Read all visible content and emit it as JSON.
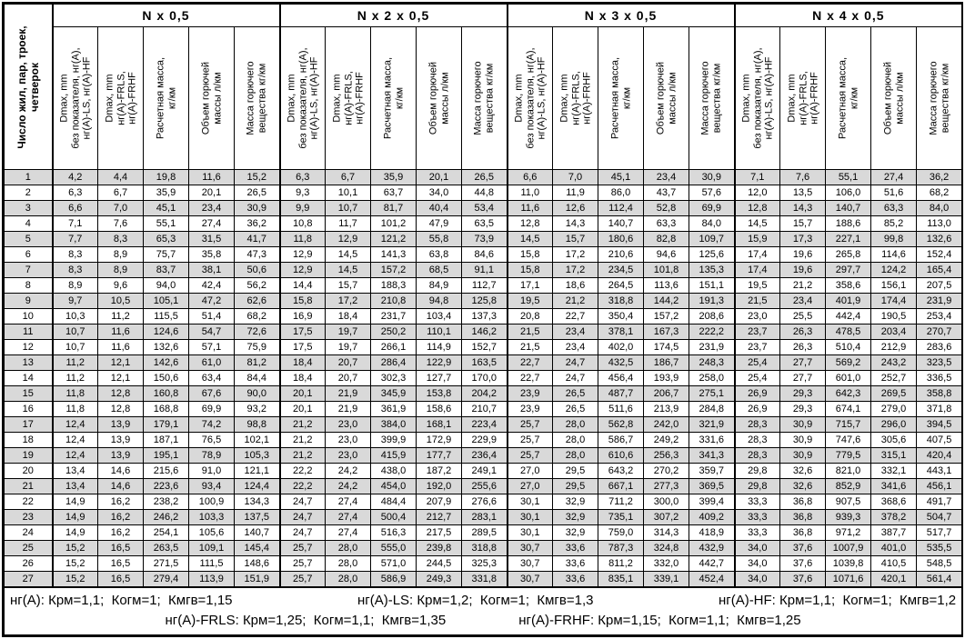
{
  "table": {
    "corner_label": "Число жил, пар, троек,\nчетверок",
    "groups": [
      {
        "label": "N x 0,5"
      },
      {
        "label": "N x 2 x 0,5"
      },
      {
        "label": "N x 3 x 0,5"
      },
      {
        "label": "N x 4 x 0,5"
      }
    ],
    "sub_headers": [
      "Dmax, mm\nбез показателя, нг(А),\nнг(А)-LS, нг(А)-HF",
      "Dmax, mm\nнг(А)-FRLS,\nнг(А)-FRHF",
      "Расчетная масса,\nкг/км",
      "Объем горючей\nмассы л/км",
      "Масса горючего\nвещества кг/км"
    ],
    "rows": [
      {
        "n": "1",
        "values": [
          "4,2",
          "4,4",
          "19,8",
          "11,6",
          "15,2",
          "6,3",
          "6,7",
          "35,9",
          "20,1",
          "26,5",
          "6,6",
          "7,0",
          "45,1",
          "23,4",
          "30,9",
          "7,1",
          "7,6",
          "55,1",
          "27,4",
          "36,2"
        ]
      },
      {
        "n": "2",
        "values": [
          "6,3",
          "6,7",
          "35,9",
          "20,1",
          "26,5",
          "9,3",
          "10,1",
          "63,7",
          "34,0",
          "44,8",
          "11,0",
          "11,9",
          "86,0",
          "43,7",
          "57,6",
          "12,0",
          "13,5",
          "106,0",
          "51,6",
          "68,2"
        ]
      },
      {
        "n": "3",
        "values": [
          "6,6",
          "7,0",
          "45,1",
          "23,4",
          "30,9",
          "9,9",
          "10,7",
          "81,7",
          "40,4",
          "53,4",
          "11,6",
          "12,6",
          "112,4",
          "52,8",
          "69,9",
          "12,8",
          "14,3",
          "140,7",
          "63,3",
          "84,0"
        ]
      },
      {
        "n": "4",
        "values": [
          "7,1",
          "7,6",
          "55,1",
          "27,4",
          "36,2",
          "10,8",
          "11,7",
          "101,2",
          "47,9",
          "63,5",
          "12,8",
          "14,3",
          "140,7",
          "63,3",
          "84,0",
          "14,5",
          "15,7",
          "188,6",
          "85,2",
          "113,0"
        ]
      },
      {
        "n": "5",
        "values": [
          "7,7",
          "8,3",
          "65,3",
          "31,5",
          "41,7",
          "11,8",
          "12,9",
          "121,2",
          "55,8",
          "73,9",
          "14,5",
          "15,7",
          "180,6",
          "82,8",
          "109,7",
          "15,9",
          "17,3",
          "227,1",
          "99,8",
          "132,6"
        ]
      },
      {
        "n": "6",
        "values": [
          "8,3",
          "8,9",
          "75,7",
          "35,8",
          "47,3",
          "12,9",
          "14,5",
          "141,3",
          "63,8",
          "84,6",
          "15,8",
          "17,2",
          "210,6",
          "94,6",
          "125,6",
          "17,4",
          "19,6",
          "265,8",
          "114,6",
          "152,4"
        ]
      },
      {
        "n": "7",
        "values": [
          "8,3",
          "8,9",
          "83,7",
          "38,1",
          "50,6",
          "12,9",
          "14,5",
          "157,2",
          "68,5",
          "91,1",
          "15,8",
          "17,2",
          "234,5",
          "101,8",
          "135,3",
          "17,4",
          "19,6",
          "297,7",
          "124,2",
          "165,4"
        ]
      },
      {
        "n": "8",
        "values": [
          "8,9",
          "9,6",
          "94,0",
          "42,4",
          "56,2",
          "14,4",
          "15,7",
          "188,3",
          "84,9",
          "112,7",
          "17,1",
          "18,6",
          "264,5",
          "113,6",
          "151,1",
          "19,5",
          "21,2",
          "358,6",
          "156,1",
          "207,5"
        ]
      },
      {
        "n": "9",
        "values": [
          "9,7",
          "10,5",
          "105,1",
          "47,2",
          "62,6",
          "15,8",
          "17,2",
          "210,8",
          "94,8",
          "125,8",
          "19,5",
          "21,2",
          "318,8",
          "144,2",
          "191,3",
          "21,5",
          "23,4",
          "401,9",
          "174,4",
          "231,9"
        ]
      },
      {
        "n": "10",
        "values": [
          "10,3",
          "11,2",
          "115,5",
          "51,4",
          "68,2",
          "16,9",
          "18,4",
          "231,7",
          "103,4",
          "137,3",
          "20,8",
          "22,7",
          "350,4",
          "157,2",
          "208,6",
          "23,0",
          "25,5",
          "442,4",
          "190,5",
          "253,4"
        ]
      },
      {
        "n": "11",
        "values": [
          "10,7",
          "11,6",
          "124,6",
          "54,7",
          "72,6",
          "17,5",
          "19,7",
          "250,2",
          "110,1",
          "146,2",
          "21,5",
          "23,4",
          "378,1",
          "167,3",
          "222,2",
          "23,7",
          "26,3",
          "478,5",
          "203,4",
          "270,7"
        ]
      },
      {
        "n": "12",
        "values": [
          "10,7",
          "11,6",
          "132,6",
          "57,1",
          "75,9",
          "17,5",
          "19,7",
          "266,1",
          "114,9",
          "152,7",
          "21,5",
          "23,4",
          "402,0",
          "174,5",
          "231,9",
          "23,7",
          "26,3",
          "510,4",
          "212,9",
          "283,6"
        ]
      },
      {
        "n": "13",
        "values": [
          "11,2",
          "12,1",
          "142,6",
          "61,0",
          "81,2",
          "18,4",
          "20,7",
          "286,4",
          "122,9",
          "163,5",
          "22,7",
          "24,7",
          "432,5",
          "186,7",
          "248,3",
          "25,4",
          "27,7",
          "569,2",
          "243,2",
          "323,5"
        ]
      },
      {
        "n": "14",
        "values": [
          "11,2",
          "12,1",
          "150,6",
          "63,4",
          "84,4",
          "18,4",
          "20,7",
          "302,3",
          "127,7",
          "170,0",
          "22,7",
          "24,7",
          "456,4",
          "193,9",
          "258,0",
          "25,4",
          "27,7",
          "601,0",
          "252,7",
          "336,5"
        ]
      },
      {
        "n": "15",
        "values": [
          "11,8",
          "12,8",
          "160,8",
          "67,6",
          "90,0",
          "20,1",
          "21,9",
          "345,9",
          "153,8",
          "204,2",
          "23,9",
          "26,5",
          "487,7",
          "206,7",
          "275,1",
          "26,9",
          "29,3",
          "642,3",
          "269,5",
          "358,8"
        ]
      },
      {
        "n": "16",
        "values": [
          "11,8",
          "12,8",
          "168,8",
          "69,9",
          "93,2",
          "20,1",
          "21,9",
          "361,9",
          "158,6",
          "210,7",
          "23,9",
          "26,5",
          "511,6",
          "213,9",
          "284,8",
          "26,9",
          "29,3",
          "674,1",
          "279,0",
          "371,8"
        ]
      },
      {
        "n": "17",
        "values": [
          "12,4",
          "13,9",
          "179,1",
          "74,2",
          "98,8",
          "21,2",
          "23,0",
          "384,0",
          "168,1",
          "223,4",
          "25,7",
          "28,0",
          "562,8",
          "242,0",
          "321,9",
          "28,3",
          "30,9",
          "715,7",
          "296,0",
          "394,5"
        ]
      },
      {
        "n": "18",
        "values": [
          "12,4",
          "13,9",
          "187,1",
          "76,5",
          "102,1",
          "21,2",
          "23,0",
          "399,9",
          "172,9",
          "229,9",
          "25,7",
          "28,0",
          "586,7",
          "249,2",
          "331,6",
          "28,3",
          "30,9",
          "747,6",
          "305,6",
          "407,5"
        ]
      },
      {
        "n": "19",
        "values": [
          "12,4",
          "13,9",
          "195,1",
          "78,9",
          "105,3",
          "21,2",
          "23,0",
          "415,9",
          "177,7",
          "236,4",
          "25,7",
          "28,0",
          "610,6",
          "256,3",
          "341,3",
          "28,3",
          "30,9",
          "779,5",
          "315,1",
          "420,4"
        ]
      },
      {
        "n": "20",
        "values": [
          "13,4",
          "14,6",
          "215,6",
          "91,0",
          "121,1",
          "22,2",
          "24,2",
          "438,0",
          "187,2",
          "249,1",
          "27,0",
          "29,5",
          "643,2",
          "270,2",
          "359,7",
          "29,8",
          "32,6",
          "821,0",
          "332,1",
          "443,1"
        ]
      },
      {
        "n": "21",
        "values": [
          "13,4",
          "14,6",
          "223,6",
          "93,4",
          "124,4",
          "22,2",
          "24,2",
          "454,0",
          "192,0",
          "255,6",
          "27,0",
          "29,5",
          "667,1",
          "277,3",
          "369,5",
          "29,8",
          "32,6",
          "852,9",
          "341,6",
          "456,1"
        ]
      },
      {
        "n": "22",
        "values": [
          "14,9",
          "16,2",
          "238,2",
          "100,9",
          "134,3",
          "24,7",
          "27,4",
          "484,4",
          "207,9",
          "276,6",
          "30,1",
          "32,9",
          "711,2",
          "300,0",
          "399,4",
          "33,3",
          "36,8",
          "907,5",
          "368,6",
          "491,7"
        ]
      },
      {
        "n": "23",
        "values": [
          "14,9",
          "16,2",
          "246,2",
          "103,3",
          "137,5",
          "24,7",
          "27,4",
          "500,4",
          "212,7",
          "283,1",
          "30,1",
          "32,9",
          "735,1",
          "307,2",
          "409,2",
          "33,3",
          "36,8",
          "939,3",
          "378,2",
          "504,7"
        ]
      },
      {
        "n": "24",
        "values": [
          "14,9",
          "16,2",
          "254,1",
          "105,6",
          "140,7",
          "24,7",
          "27,4",
          "516,3",
          "217,5",
          "289,5",
          "30,1",
          "32,9",
          "759,0",
          "314,3",
          "418,9",
          "33,3",
          "36,8",
          "971,2",
          "387,7",
          "517,7"
        ]
      },
      {
        "n": "25",
        "values": [
          "15,2",
          "16,5",
          "263,5",
          "109,1",
          "145,4",
          "25,7",
          "28,0",
          "555,0",
          "239,8",
          "318,8",
          "30,7",
          "33,6",
          "787,3",
          "324,8",
          "432,9",
          "34,0",
          "37,6",
          "1007,9",
          "401,0",
          "535,5"
        ]
      },
      {
        "n": "26",
        "values": [
          "15,2",
          "16,5",
          "271,5",
          "111,5",
          "148,6",
          "25,7",
          "28,0",
          "571,0",
          "244,5",
          "325,3",
          "30,7",
          "33,6",
          "811,2",
          "332,0",
          "442,7",
          "34,0",
          "37,6",
          "1039,8",
          "410,5",
          "548,5"
        ]
      },
      {
        "n": "27",
        "values": [
          "15,2",
          "16,5",
          "279,4",
          "113,9",
          "151,9",
          "25,7",
          "28,0",
          "586,9",
          "249,3",
          "331,8",
          "30,7",
          "33,6",
          "835,1",
          "339,1",
          "452,4",
          "34,0",
          "37,6",
          "1071,6",
          "420,1",
          "561,4"
        ]
      }
    ],
    "footnotes": {
      "line1": [
        "нг(А): Крм=1,1;  Когм=1;  Кмгв=1,15",
        "нг(А)-LS: Крм=1,2;  Когм=1;  Кмгв=1,3",
        "нг(А)-HF: Крм=1,1;  Когм=1;  Кмгв=1,2"
      ],
      "line2": [
        "нг(А)-FRLS: Крм=1,25;  Когм=1,1;  Кмгв=1,35",
        "нг(А)-FRHF: Крм=1,15;  Когм=1,1;  Кмгв=1,25"
      ]
    }
  }
}
